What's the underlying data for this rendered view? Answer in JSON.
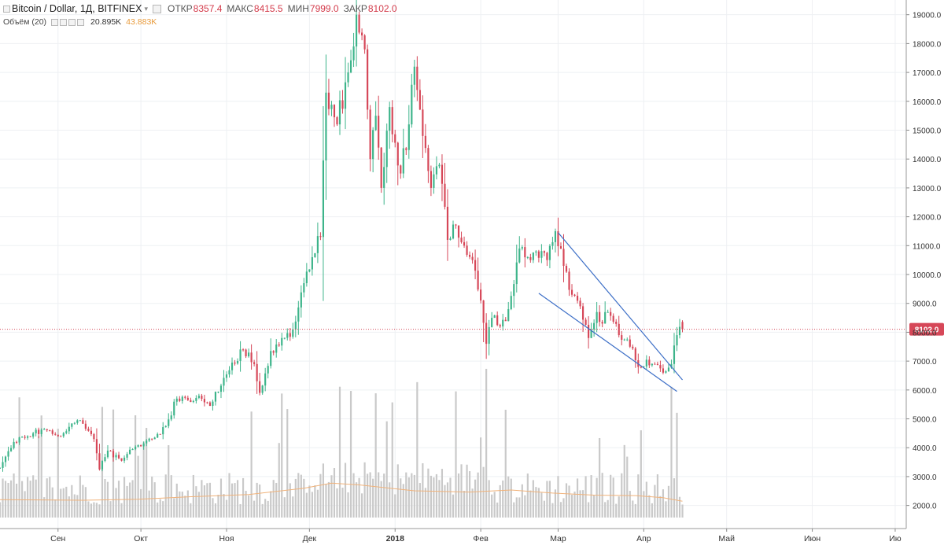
{
  "header": {
    "symbol": "Bitcoin / Dollar, 1Д, BITFINEX",
    "ohlc": [
      {
        "label": "ОТКР",
        "value": "8357.4"
      },
      {
        "label": "МАКС",
        "value": "8415.5"
      },
      {
        "label": "МИН",
        "value": "7999.0"
      },
      {
        "label": "ЗАКР",
        "value": "8102.0"
      }
    ],
    "volume_label": "Объём (20)",
    "volume_value": "20.895K",
    "volume_ma_value": "43.883K"
  },
  "colors": {
    "up": "#3db48a",
    "down": "#d64758",
    "volume": "#c9c9c9",
    "volume_ma": "#f0b27a",
    "trendline": "#3d6fc7",
    "last_price": "#d64758"
  },
  "chart_data": {
    "type": "candlestick",
    "title": "Bitcoin / Dollar, 1Д, BITFINEX",
    "y_axis": {
      "position": "right",
      "range": [
        1200,
        19400
      ],
      "ticks": [
        "2000.0",
        "3000.0",
        "4000.0",
        "5000.0",
        "6000.0",
        "7000.0",
        "8000.0",
        "9000.0",
        "10000.0",
        "11000.0",
        "12000.0",
        "13000.0",
        "14000.0",
        "15000.0",
        "16000.0",
        "17000.0",
        "18000.0",
        "19000.0"
      ]
    },
    "x_axis": {
      "labels": [
        {
          "text": "Сен",
          "day": 11
        },
        {
          "text": "Окт",
          "day": 41
        },
        {
          "text": "Ноя",
          "day": 72
        },
        {
          "text": "Дек",
          "day": 102
        },
        {
          "text": "2018",
          "day": 133
        },
        {
          "text": "Фев",
          "day": 164
        },
        {
          "text": "Мар",
          "day": 192
        },
        {
          "text": "Апр",
          "day": 223
        },
        {
          "text": "Май",
          "day": 253
        },
        {
          "text": "Июн",
          "day": 284
        },
        {
          "text": "Ию",
          "day": 314
        }
      ],
      "last_day": 237,
      "range_days": [
        -10,
        318
      ]
    },
    "close_anchors": [
      [
        -10,
        3300
      ],
      [
        -5,
        4200
      ],
      [
        2,
        4500
      ],
      [
        8,
        4600
      ],
      [
        11,
        4400
      ],
      [
        18,
        4950
      ],
      [
        24,
        4300
      ],
      [
        26,
        3250
      ],
      [
        29,
        3900
      ],
      [
        34,
        3550
      ],
      [
        38,
        3950
      ],
      [
        42,
        4150
      ],
      [
        46,
        4350
      ],
      [
        50,
        4750
      ],
      [
        54,
        5700
      ],
      [
        58,
        5650
      ],
      [
        62,
        5800
      ],
      [
        66,
        5450
      ],
      [
        70,
        6150
      ],
      [
        74,
        6950
      ],
      [
        78,
        7400
      ],
      [
        82,
        6900
      ],
      [
        84,
        5900
      ],
      [
        88,
        7350
      ],
      [
        92,
        7800
      ],
      [
        96,
        8100
      ],
      [
        100,
        9700
      ],
      [
        103,
        10600
      ],
      [
        106,
        11300
      ],
      [
        108,
        16300
      ],
      [
        112,
        15200
      ],
      [
        116,
        17000
      ],
      [
        119,
        19000
      ],
      [
        122,
        17800
      ],
      [
        124,
        14000
      ],
      [
        126,
        15500
      ],
      [
        128,
        13000
      ],
      [
        131,
        15800
      ],
      [
        135,
        13500
      ],
      [
        138,
        15200
      ],
      [
        140,
        17200
      ],
      [
        143,
        14800
      ],
      [
        146,
        13000
      ],
      [
        149,
        13800
      ],
      [
        152,
        11200
      ],
      [
        155,
        11700
      ],
      [
        158,
        11000
      ],
      [
        161,
        10500
      ],
      [
        164,
        9100
      ],
      [
        166,
        7600
      ],
      [
        168,
        8500
      ],
      [
        171,
        8200
      ],
      [
        174,
        8800
      ],
      [
        178,
        10900
      ],
      [
        181,
        10600
      ],
      [
        184,
        10800
      ],
      [
        188,
        10500
      ],
      [
        191,
        11500
      ],
      [
        194,
        10300
      ],
      [
        197,
        9300
      ],
      [
        200,
        8900
      ],
      [
        203,
        7800
      ],
      [
        206,
        8700
      ],
      [
        208,
        8300
      ],
      [
        210,
        8700
      ],
      [
        214,
        7900
      ],
      [
        218,
        7500
      ],
      [
        221,
        6800
      ],
      [
        224,
        7050
      ],
      [
        227,
        6900
      ],
      [
        230,
        6600
      ],
      [
        233,
        6900
      ],
      [
        235,
        7900
      ],
      [
        237,
        8102
      ]
    ],
    "volume_scale_max": 5400,
    "volume_ma_path": [
      [
        -10,
        700
      ],
      [
        20,
        680
      ],
      [
        40,
        720
      ],
      [
        60,
        820
      ],
      [
        80,
        900
      ],
      [
        100,
        1150
      ],
      [
        110,
        1350
      ],
      [
        120,
        1280
      ],
      [
        140,
        1050
      ],
      [
        160,
        1000
      ],
      [
        175,
        1080
      ],
      [
        190,
        960
      ],
      [
        205,
        880
      ],
      [
        220,
        860
      ],
      [
        230,
        780
      ],
      [
        237,
        640
      ]
    ],
    "trendlines": [
      {
        "from": [
          192,
          11450
        ],
        "to": [
          237,
          6350
        ]
      },
      {
        "from": [
          185,
          9350
        ],
        "to": [
          235,
          5950
        ]
      }
    ],
    "last_price": "8102.0"
  }
}
